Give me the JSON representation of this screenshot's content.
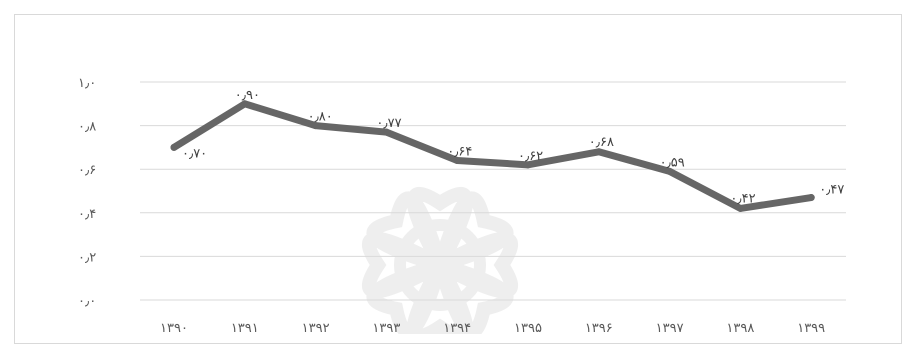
{
  "chart_data": {
    "type": "line",
    "x": [
      "۱۳۹۰",
      "۱۳۹۱",
      "۱۳۹۲",
      "۱۳۹۳",
      "۱۳۹۴",
      "۱۳۹۵",
      "۱۳۹۶",
      "۱۳۹۷",
      "۱۳۹۸",
      "۱۳۹۹"
    ],
    "values": [
      0.7,
      0.9,
      0.8,
      0.77,
      0.64,
      0.62,
      0.68,
      0.59,
      0.42,
      0.47
    ],
    "data_labels": [
      "۰٫۷۰",
      "۰٫۹۰",
      "۰٫۸۰",
      "۰٫۷۷",
      "۰٫۶۴",
      "۰٫۶۲",
      "۰٫۶۸",
      "۰٫۵۹",
      "۰٫۴۲",
      "۰٫۴۷"
    ],
    "y_ticks": [
      {
        "value": 1.0,
        "label": "۱٫۰"
      },
      {
        "value": 0.8,
        "label": "۰٫۸"
      },
      {
        "value": 0.6,
        "label": "۰٫۶"
      },
      {
        "value": 0.4,
        "label": "۰٫۴"
      },
      {
        "value": 0.2,
        "label": "۰٫۲"
      },
      {
        "value": 0.0,
        "label": "۰٫۰"
      }
    ],
    "ylim": [
      0,
      1.0
    ],
    "grid": true,
    "legend": "none",
    "line_color": "#666666",
    "grid_color": "#d9d9d9",
    "watermark_color": "#eeeeee"
  }
}
